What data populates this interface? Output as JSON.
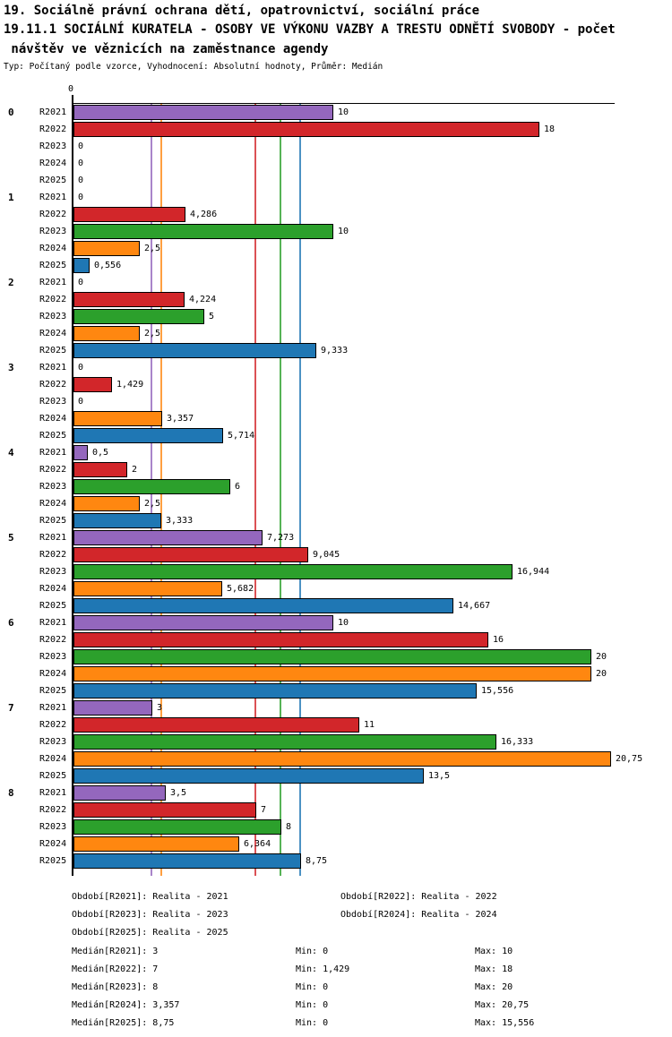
{
  "header": {
    "title_line1": "19. Sociálně právní ochrana dětí, opatrovnictví, sociální práce",
    "title_line2": "19.11.1 SOCIÁLNÍ KURATELA - OSOBY VE VÝKONU VAZBY A TRESTU ODNĚTÍ SVOBODY - počet",
    "title_line3": " návštěv ve věznicích na zaměstnance agendy",
    "subtitle": "Typ: Počítaný podle vzorce, Vyhodnocení: Absolutní hodnoty, Průměr: Medián"
  },
  "chart_data": {
    "type": "bar",
    "orientation": "horizontal",
    "x_axis": {
      "zero_tick_label": "0",
      "xmax": 21
    },
    "series": [
      {
        "name": "R2021",
        "color": "#9467bd",
        "median": 3
      },
      {
        "name": "R2022",
        "color": "#d2262a",
        "median": 7
      },
      {
        "name": "R2023",
        "color": "#2ca02c",
        "median": 8
      },
      {
        "name": "R2024",
        "color": "#ff8710",
        "median": 3.357
      },
      {
        "name": "R2025",
        "color": "#1f77b4",
        "median": 8.75
      }
    ],
    "groups": [
      {
        "label": "0",
        "values": [
          10,
          18,
          0,
          0,
          0
        ],
        "display": [
          "10",
          "18",
          "0",
          "0",
          "0"
        ]
      },
      {
        "label": "1",
        "values": [
          0,
          4.286,
          10,
          2.5,
          0.556
        ],
        "display": [
          "0",
          "4,286",
          "10",
          "2,5",
          "0,556"
        ]
      },
      {
        "label": "2",
        "values": [
          0,
          4.224,
          5,
          2.5,
          9.333
        ],
        "display": [
          "0",
          "4,224",
          "5",
          "2,5",
          "9,333"
        ]
      },
      {
        "label": "3",
        "values": [
          0,
          1.429,
          0,
          3.357,
          5.714
        ],
        "display": [
          "0",
          "1,429",
          "0",
          "3,357",
          "5,714"
        ]
      },
      {
        "label": "4",
        "values": [
          0.5,
          2,
          6,
          2.5,
          3.333
        ],
        "display": [
          "0,5",
          "2",
          "6",
          "2,5",
          "3,333"
        ]
      },
      {
        "label": "5",
        "values": [
          7.273,
          9.045,
          16.944,
          5.682,
          14.667
        ],
        "display": [
          "7,273",
          "9,045",
          "16,944",
          "5,682",
          "14,667"
        ]
      },
      {
        "label": "6",
        "values": [
          10,
          16,
          20,
          20,
          15.556
        ],
        "display": [
          "10",
          "16",
          "20",
          "20",
          "15,556"
        ]
      },
      {
        "label": "7",
        "values": [
          3,
          11,
          16.333,
          20.75,
          13.5
        ],
        "display": [
          "3",
          "11",
          "16,333",
          "20,75",
          "13,5"
        ]
      },
      {
        "label": "8",
        "values": [
          3.5,
          7,
          8,
          6.364,
          8.75
        ],
        "display": [
          "3,5",
          "7",
          "8",
          "6,364",
          "8,75"
        ]
      }
    ]
  },
  "legend": {
    "items": [
      "Období[R2021]: Realita - 2021",
      "Období[R2022]: Realita - 2022",
      "Období[R2023]: Realita - 2023",
      "Období[R2024]: Realita - 2024",
      "Období[R2025]: Realita - 2025"
    ]
  },
  "stats": {
    "rows": [
      {
        "median": "Medián[R2021]: 3",
        "min": "Min: 0",
        "max": "Max: 10"
      },
      {
        "median": "Medián[R2022]: 7",
        "min": "Min: 1,429",
        "max": "Max: 18"
      },
      {
        "median": "Medián[R2023]: 8",
        "min": "Min: 0",
        "max": "Max: 20"
      },
      {
        "median": "Medián[R2024]: 3,357",
        "min": "Min: 0",
        "max": "Max: 20,75"
      },
      {
        "median": "Medián[R2025]: 8,75",
        "min": "Min: 0",
        "max": "Max: 15,556"
      }
    ]
  }
}
